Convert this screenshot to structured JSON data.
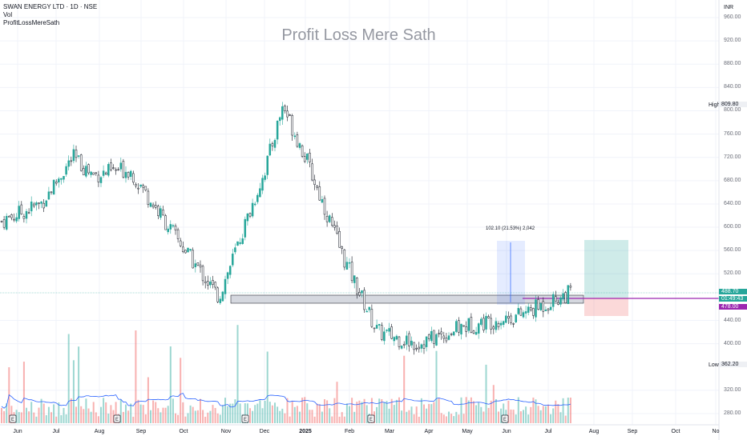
{
  "legend": {
    "title": "SWAN ENERGY LTD · 1D · NSE",
    "line2": "Vol",
    "line3": "ProfitLossMereSath"
  },
  "watermark": "Profit Loss Mere Sath",
  "currency": "INR",
  "y_ticks": [
    "960.00",
    "920.00",
    "880.00",
    "840.00",
    "800.00",
    "760.00",
    "720.00",
    "680.00",
    "640.00",
    "600.00",
    "560.00",
    "520.00",
    "440.00",
    "400.00",
    "320.00",
    "280.00"
  ],
  "x_ticks": [
    {
      "label": "Jun",
      "strong": false
    },
    {
      "label": "Jul",
      "strong": false
    },
    {
      "label": "Aug",
      "strong": false
    },
    {
      "label": "Sep",
      "strong": false
    },
    {
      "label": "Oct",
      "strong": false
    },
    {
      "label": "Nov",
      "strong": false
    },
    {
      "label": "Dec",
      "strong": false
    },
    {
      "label": "2025",
      "strong": true
    },
    {
      "label": "Feb",
      "strong": false
    },
    {
      "label": "Mar",
      "strong": false
    },
    {
      "label": "Apr",
      "strong": false
    },
    {
      "label": "May",
      "strong": false
    },
    {
      "label": "Jun",
      "strong": false
    },
    {
      "label": "Jul",
      "strong": false
    },
    {
      "label": "Aug",
      "strong": false
    },
    {
      "label": "Sep",
      "strong": false
    },
    {
      "label": "Oct",
      "strong": false
    },
    {
      "label": "No",
      "strong": false
    }
  ],
  "high": {
    "label": "High",
    "value": "809.80"
  },
  "low": {
    "label": "Low",
    "value": "362.20"
  },
  "price_tags": {
    "last": "488.70",
    "countdown": "01:49:43",
    "level": "478.00"
  },
  "measure_label": "102.10 (21.53%) 2,042",
  "colors": {
    "up": "#26a69a",
    "down": "#131722",
    "last_price": "#26a69a",
    "level_line": "#9c27b0",
    "volume_up": "#26a69a",
    "volume_down": "#ef5350",
    "volume_ma": "#2962ff"
  },
  "chart_data": {
    "type": "candlestick",
    "y_range": [
      250,
      975
    ],
    "series_anchors": [
      {
        "month": "Jun 2024",
        "close": 610
      },
      {
        "month": "Jul",
        "close": 640
      },
      {
        "month": "Aug",
        "close": 720
      },
      {
        "month": "Aug-late",
        "close": 690
      },
      {
        "month": "Sep",
        "close": 700
      },
      {
        "month": "Oct",
        "close": 560
      },
      {
        "month": "Nov",
        "close": 480
      },
      {
        "month": "Dec",
        "close": 700
      },
      {
        "month": "Dec-high",
        "close": 809.8
      },
      {
        "month": "Jan 2025",
        "close": 720
      },
      {
        "month": "Feb",
        "close": 540
      },
      {
        "month": "Mar",
        "close": 420
      },
      {
        "month": "Apr",
        "close": 400
      },
      {
        "month": "May",
        "close": 430
      },
      {
        "month": "Jun",
        "close": 450
      },
      {
        "month": "Jul",
        "close": 488.7
      }
    ],
    "high": 809.8,
    "low": 362.2,
    "last": 488.7,
    "support_level": 478.0
  }
}
